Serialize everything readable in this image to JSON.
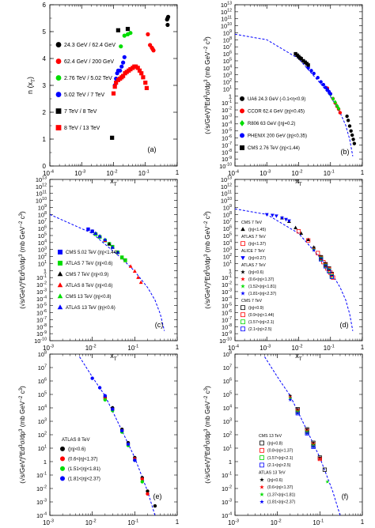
{
  "chart_data": [
    {
      "id": "a",
      "type": "scatter",
      "panel_label": "(a)",
      "ylabel": "n (x_T)",
      "xlabel": "x_T",
      "xscale": "log",
      "xlim": [
        0.0001,
        1
      ],
      "ylim": [
        0,
        6
      ],
      "yticks": [
        0,
        1,
        2,
        3,
        4,
        5,
        6
      ],
      "legend": "left-middle",
      "series": [
        {
          "name": "24.3 GeV / 62.4 GeV",
          "marker": "circle",
          "color": "#000000",
          "x": [
            0.48,
            0.5,
            0.52,
            0.5
          ],
          "y": [
            5.45,
            5.5,
            5.55,
            5.25
          ]
        },
        {
          "name": "62.4 GeV / 200 GeV",
          "marker": "circle",
          "color": "#ff0000",
          "x": [
            0.12,
            0.14,
            0.16,
            0.17,
            0.18
          ],
          "y": [
            4.9,
            4.5,
            4.4,
            4.35,
            4.3
          ]
        },
        {
          "name": "2.76 TeV / 5.02 TeV",
          "marker": "circle",
          "color": "#00dd00",
          "x": [
            0.017,
            0.022,
            0.028,
            0.034
          ],
          "y": [
            4.45,
            4.85,
            4.9,
            4.95
          ]
        },
        {
          "name": "5.02 TeV / 7 TeV",
          "marker": "circle",
          "color": "#0000ff",
          "x": [
            0.011,
            0.012,
            0.013,
            0.014,
            0.016,
            0.018,
            0.02,
            0.022
          ],
          "y": [
            3.0,
            3.25,
            3.45,
            3.55,
            3.55,
            3.7,
            3.85,
            4.05
          ]
        },
        {
          "name": "7 TeV / 8 TeV",
          "marker": "square",
          "color": "#000000",
          "x": [
            0.009,
            0.014,
            0.028
          ],
          "y": [
            1.05,
            5.05,
            5.1
          ]
        },
        {
          "name": "8 TeV / 13 TeV",
          "marker": "square",
          "color": "#ff0000",
          "x": [
            0.01,
            0.011,
            0.012,
            0.014,
            0.016,
            0.018,
            0.02,
            0.023,
            0.026,
            0.03,
            0.034,
            0.04,
            0.045,
            0.05,
            0.058,
            0.066,
            0.075,
            0.085,
            0.1,
            0.11
          ],
          "y": [
            2.7,
            2.95,
            3.1,
            3.2,
            3.25,
            3.3,
            3.35,
            3.45,
            3.5,
            3.55,
            3.6,
            3.65,
            3.7,
            3.7,
            3.65,
            3.55,
            3.45,
            3.3,
            3.1,
            2.9
          ]
        }
      ]
    },
    {
      "id": "b",
      "type": "scatter",
      "panel_label": "(b)",
      "ylabel": "(√s/GeV)^n Ed³σ/dp³ (mb GeV⁻² c³)",
      "xlabel": "x_T",
      "xscale": "log",
      "yscale": "log",
      "xlim": [
        0.0001,
        1
      ],
      "ylim": [
        -10,
        13
      ],
      "legend": "bottom-left",
      "curve": {
        "style": "dashed",
        "color": "#0000ff",
        "x": [
          0.0001,
          0.001,
          0.01,
          0.05,
          0.1,
          0.2,
          0.3,
          0.4,
          0.5
        ],
        "y": [
          8.8,
          8.0,
          5.3,
          1.7,
          -0.1,
          -2.4,
          -4.2,
          -6.2,
          -8.6
        ]
      },
      "series": [
        {
          "name": "UA6  24.3 GeV (-0.1<η<0.9)",
          "marker": "circle",
          "color": "#000000",
          "x": [
            0.33,
            0.36,
            0.4,
            0.44,
            0.48,
            0.52,
            0.56
          ],
          "y": [
            -2.9,
            -3.5,
            -4.3,
            -5.0,
            -5.6,
            -6.2,
            -6.8
          ]
        },
        {
          "name": "CCOR 62.4 GeV (|η|<0.45)",
          "marker": "circle",
          "color": "#ff0000",
          "x": [
            0.08,
            0.1,
            0.12,
            0.14,
            0.16,
            0.18,
            0.2
          ],
          "y": [
            1.1,
            0.3,
            -0.4,
            -1.0,
            -1.5,
            -1.9,
            -2.4
          ]
        },
        {
          "name": "R806 63 GeV (|η|=0.2)",
          "marker": "diamond",
          "color": "#00dd00",
          "x": [
            0.1,
            0.12,
            0.14,
            0.16,
            0.18
          ],
          "y": [
            0.2,
            -0.4,
            -0.9,
            -1.4,
            -1.8
          ]
        },
        {
          "name": "PHENIX 200 GeV (|η|<0.35)",
          "marker": "circle",
          "color": "#0000ff",
          "x": [
            0.02,
            0.025,
            0.03,
            0.04,
            0.05,
            0.06,
            0.07,
            0.08,
            0.09,
            0.1
          ],
          "y": [
            4.0,
            3.6,
            3.2,
            2.6,
            2.0,
            1.6,
            1.2,
            0.9,
            0.6,
            0.3
          ]
        },
        {
          "name": "CMS 2.76 TeV (|η|<1.44)",
          "marker": "square",
          "color": "#000000",
          "x": [
            0.008,
            0.009,
            0.01,
            0.011,
            0.012,
            0.014,
            0.016,
            0.018,
            0.02
          ],
          "y": [
            6.0,
            5.8,
            5.6,
            5.4,
            5.3,
            5.0,
            4.8,
            4.6,
            4.4
          ]
        }
      ]
    },
    {
      "id": "c",
      "type": "scatter",
      "panel_label": "(c)",
      "ylabel": "(√s/GeV)^n Ed³σ/dp³ (mb GeV⁻² c³)",
      "xlabel": "x_T",
      "xscale": "log",
      "yscale": "log",
      "xlim": [
        0.001,
        1
      ],
      "ylim": [
        -10,
        13
      ],
      "legend": "bottom-left",
      "curve": {
        "style": "dashed",
        "color": "#0000ff",
        "x": [
          0.001,
          0.01,
          0.05,
          0.1,
          0.2,
          0.3,
          0.4,
          0.5
        ],
        "y": [
          8.0,
          5.3,
          1.7,
          -0.1,
          -2.4,
          -4.2,
          -6.2,
          -8.6
        ]
      },
      "series": [
        {
          "name": "CMS 5.02 TeV (|η|<1.44)",
          "marker": "square",
          "color": "#0000ff",
          "x": [
            0.008,
            0.01,
            0.012,
            0.015,
            0.02,
            0.025,
            0.03
          ],
          "y": [
            5.9,
            5.6,
            5.2,
            4.8,
            4.3,
            3.8,
            3.4
          ]
        },
        {
          "name": "ATLAS 7 TeV (|η|<0.6)",
          "marker": "square",
          "color": "#00dd00",
          "x": [
            0.012,
            0.015,
            0.02,
            0.025,
            0.03,
            0.04,
            0.05,
            0.06
          ],
          "y": [
            5.2,
            4.8,
            4.3,
            3.8,
            3.4,
            2.6,
            1.9,
            1.5
          ]
        },
        {
          "name": "CMS 7 TeV (|η|<0.9)",
          "marker": "triangle",
          "color": "#000000",
          "x": [
            0.01,
            0.012,
            0.015,
            0.02,
            0.025
          ],
          "y": [
            5.6,
            5.3,
            4.9,
            4.3,
            3.8
          ]
        },
        {
          "name": "ATLAS 8 TeV (|η|<0.6)",
          "marker": "triangle",
          "color": "#ff0000",
          "x": [
            0.02,
            0.03,
            0.04,
            0.05,
            0.06,
            0.08,
            0.1,
            0.12,
            0.14
          ],
          "y": [
            4.3,
            3.3,
            2.6,
            1.8,
            1.4,
            0.6,
            -0.1,
            -1.0,
            -1.7
          ]
        },
        {
          "name": "CMS 13 TeV (|η|<0.8)",
          "marker": "triangle",
          "color": "#00dd00",
          "x": [
            0.03,
            0.04,
            0.05,
            0.06
          ],
          "y": [
            3.3,
            2.6,
            1.8,
            1.4
          ]
        },
        {
          "name": "ATLAS 13 TeV (|η|<0.6)",
          "marker": "triangle",
          "color": "#0000ff",
          "x": [
            0.01,
            0.012,
            0.015,
            0.02,
            0.03,
            0.04
          ],
          "y": [
            5.6,
            5.3,
            4.9,
            4.4,
            3.3,
            2.6
          ]
        }
      ]
    },
    {
      "id": "d",
      "type": "scatter",
      "panel_label": "(d)",
      "ylabel": "(√s/GeV)^n Ed³σ/dp³ (mb GeV⁻² c³)",
      "xlabel": "x_T",
      "xscale": "log",
      "yscale": "log",
      "xlim": [
        0.0001,
        1
      ],
      "ylim": [
        -10,
        13
      ],
      "legend": "left",
      "legend_groups": [
        "CMS 7 TeV",
        "ATLAS 7 TeV",
        "ALICE 7 TeV",
        "ATLAS 7 TeV",
        "CMS  7 TeV"
      ],
      "curve": {
        "style": "dashed",
        "color": "#0000ff",
        "x": [
          0.0001,
          0.001,
          0.01,
          0.05,
          0.1,
          0.2,
          0.3,
          0.4,
          0.5
        ],
        "y": [
          8.8,
          8.0,
          5.3,
          1.7,
          -0.1,
          -2.4,
          -4.2,
          -6.2,
          -8.6
        ]
      },
      "series": [
        {
          "name": "(|η|<1.45)",
          "marker": "triangle",
          "color": "#000000",
          "x": [
            0.003,
            0.005,
            0.008,
            0.012,
            0.02,
            0.03
          ],
          "y": [
            7.5,
            7.0,
            6.1,
            5.3,
            4.4,
            3.3
          ]
        },
        {
          "name": "(|η|<1.37)",
          "marker": "open-square",
          "color": "#ff0000",
          "x": [
            0.01,
            0.02,
            0.04,
            0.06,
            0.08,
            0.1,
            0.12
          ],
          "y": [
            5.6,
            4.3,
            2.5,
            1.2,
            0.3,
            -0.3,
            -1.0
          ]
        },
        {
          "name": "(|η|<0.27)",
          "marker": "triangle-down",
          "color": "#0000ff",
          "x": [
            0.001,
            0.0015,
            0.002,
            0.003,
            0.004,
            0.005
          ],
          "y": [
            8.0,
            7.9,
            7.8,
            7.5,
            7.3,
            7.1
          ]
        },
        {
          "name": "(|η|<0.6)",
          "marker": "star",
          "color": "#000000",
          "x": [
            0.03,
            0.05,
            0.07,
            0.09
          ],
          "y": [
            3.3,
            2.0,
            1.0,
            0.2
          ]
        },
        {
          "name": "(0.6<|η|<1.37)",
          "marker": "star",
          "color": "#ff0000",
          "x": [
            0.03,
            0.05,
            0.07,
            0.09
          ],
          "y": [
            3.1,
            1.8,
            0.8,
            0.1
          ]
        },
        {
          "name": "(1.52<|η|<1.81)",
          "marker": "star",
          "color": "#00dd00",
          "x": [
            0.03,
            0.05,
            0.07
          ],
          "y": [
            3.0,
            1.7,
            0.7
          ]
        },
        {
          "name": "(1.81<|η|<2.37)",
          "marker": "star",
          "color": "#0000ff",
          "x": [
            0.03,
            0.05,
            0.07
          ],
          "y": [
            2.9,
            1.6,
            0.6
          ]
        },
        {
          "name": "(|η|<0.9)",
          "marker": "open-square",
          "color": "#000000",
          "x": [
            0.05,
            0.07,
            0.09,
            0.11
          ],
          "y": [
            1.9,
            0.9,
            0.3,
            -0.5
          ]
        },
        {
          "name": "(0.9<|η|<1.44)",
          "marker": "open-square",
          "color": "#ff0000",
          "x": [
            0.05,
            0.07,
            0.09,
            0.11
          ],
          "y": [
            1.8,
            0.8,
            0.2,
            -0.6
          ]
        },
        {
          "name": "(1.57<|η|<2.1)",
          "marker": "open-square",
          "color": "#00dd00",
          "x": [
            0.05,
            0.07,
            0.09,
            0.11
          ],
          "y": [
            1.7,
            0.7,
            0.0,
            -0.8
          ]
        },
        {
          "name": "(2.1<|η|<2.5)",
          "marker": "open-square",
          "color": "#0000ff",
          "x": [
            0.05,
            0.07,
            0.09,
            0.11
          ],
          "y": [
            1.6,
            0.6,
            -0.1,
            -0.9
          ]
        }
      ]
    },
    {
      "id": "e",
      "type": "scatter",
      "panel_label": "(e)",
      "ylabel": "(√s/GeV)^n Ed³σ/dp³ (mb GeV⁻² c³)",
      "xlabel": "x_T",
      "xscale": "log",
      "yscale": "log",
      "xlim": [
        0.001,
        1
      ],
      "ylim": [
        -4,
        8
      ],
      "legend": "bottom-left",
      "legend_title": "ATLAS 8 TeV",
      "curve": {
        "style": "dashed",
        "color": "#0000ff",
        "x": [
          0.005,
          0.01,
          0.02,
          0.05,
          0.1,
          0.2,
          0.3
        ],
        "y": [
          7.8,
          6.3,
          4.9,
          2.3,
          0.3,
          -2.2,
          -4.0
        ]
      },
      "series": [
        {
          "name": "(|η|<0.6)",
          "marker": "circle",
          "color": "#000000",
          "x": [
            0.02,
            0.03,
            0.05,
            0.07,
            0.1,
            0.15,
            0.2,
            0.3
          ],
          "y": [
            4.8,
            4.0,
            2.4,
            1.4,
            0.3,
            -1.2,
            -2.2,
            -3.3
          ]
        },
        {
          "name": "(0.6<|η|<1.37)",
          "marker": "circle",
          "color": "#ff0000",
          "x": [
            0.02,
            0.03,
            0.05,
            0.07,
            0.1,
            0.15,
            0.2
          ],
          "y": [
            4.7,
            3.9,
            2.3,
            1.3,
            0.2,
            -1.3,
            -2.4
          ]
        },
        {
          "name": "(1.51<|η|<1.81)",
          "marker": "circle",
          "color": "#00dd00",
          "x": [
            0.02,
            0.03,
            0.05,
            0.07,
            0.1,
            0.15
          ],
          "y": [
            4.6,
            3.8,
            2.2,
            1.2,
            0.1,
            -1.5
          ]
        },
        {
          "name": "(1.81<|η|<2.37)",
          "marker": "circle",
          "color": "#0000ff",
          "x": [
            0.01,
            0.015,
            0.02,
            0.03,
            0.05,
            0.07,
            0.1
          ],
          "y": [
            6.2,
            5.5,
            4.9,
            3.9,
            2.3,
            1.3,
            0.1
          ]
        }
      ]
    },
    {
      "id": "f",
      "type": "scatter",
      "panel_label": "(f)",
      "ylabel": "(√s/GeV)^n Ed³σ/dp³ (mb GeV⁻² c³)",
      "xlabel": "x_T",
      "xscale": "log",
      "yscale": "log",
      "xlim": [
        0.001,
        1
      ],
      "ylim": [
        -4,
        8
      ],
      "legend": "right",
      "legend_groups": [
        "CMS 13 TeV",
        "ATLAS  13 TeV"
      ],
      "curve": {
        "style": "dashed",
        "color": "#0000ff",
        "x": [
          0.005,
          0.01,
          0.02,
          0.05,
          0.1,
          0.2,
          0.3
        ],
        "y": [
          7.8,
          6.3,
          4.9,
          2.3,
          0.3,
          -2.2,
          -4.0
        ]
      },
      "series": [
        {
          "name": "(|η|<0.8)",
          "marker": "open-square",
          "color": "#000000",
          "x": [
            0.03,
            0.05,
            0.07,
            0.1,
            0.13
          ],
          "y": [
            3.9,
            2.4,
            1.4,
            0.3,
            -0.6
          ]
        },
        {
          "name": "(0.8<|η|<1.37)",
          "marker": "open-square",
          "color": "#ff0000",
          "x": [
            0.03,
            0.05,
            0.07,
            0.1
          ],
          "y": [
            3.8,
            2.3,
            1.3,
            0.2
          ]
        },
        {
          "name": "(1.57<|η|<2.1)",
          "marker": "open-square",
          "color": "#00dd00",
          "x": [
            0.03,
            0.05,
            0.07
          ],
          "y": [
            3.7,
            2.2,
            1.2
          ]
        },
        {
          "name": "(2.1<|η|<2.5)",
          "marker": "open-square",
          "color": "#0000ff",
          "x": [
            0.03,
            0.05,
            0.07
          ],
          "y": [
            3.6,
            2.1,
            1.1
          ]
        },
        {
          "name": "(|η|<0.6)",
          "marker": "star",
          "color": "#000000",
          "x": [
            0.02,
            0.03,
            0.05,
            0.07,
            0.1
          ],
          "y": [
            4.9,
            3.9,
            2.4,
            1.4,
            0.3
          ]
        },
        {
          "name": "(0.6<|η|<1.37)",
          "marker": "star",
          "color": "#ff0000",
          "x": [
            0.02,
            0.03,
            0.05,
            0.07,
            0.1
          ],
          "y": [
            4.8,
            3.8,
            2.3,
            1.3,
            0.2
          ]
        },
        {
          "name": "(1.37<|η|<1.81)",
          "marker": "star",
          "color": "#00dd00",
          "x": [
            0.02,
            0.03,
            0.05,
            0.07,
            0.15
          ],
          "y": [
            4.7,
            3.7,
            2.2,
            1.2,
            -1.5
          ]
        },
        {
          "name": "(1.81<|η|<2.37)",
          "marker": "star",
          "color": "#0000ff",
          "x": [
            0.02,
            0.03,
            0.05,
            0.07
          ],
          "y": [
            4.6,
            3.6,
            2.1,
            1.1
          ]
        }
      ]
    }
  ]
}
